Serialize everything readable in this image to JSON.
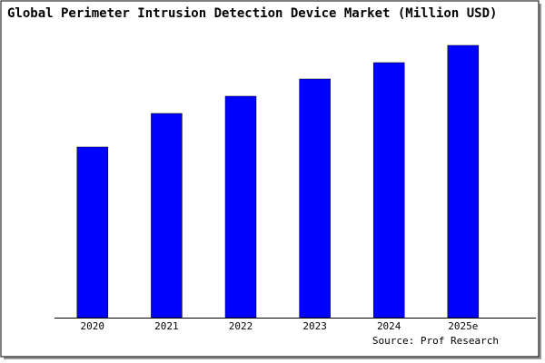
{
  "chart_data": {
    "type": "bar",
    "title": "Global Perimeter Intrusion Detection Device Market (Million USD)",
    "categories": [
      "2020",
      "2021",
      "2022",
      "2023",
      "2024",
      "2025e"
    ],
    "values": [
      188,
      225,
      244,
      263,
      281,
      300
    ],
    "color": "#0000ff",
    "source": "Source: Prof Research"
  }
}
